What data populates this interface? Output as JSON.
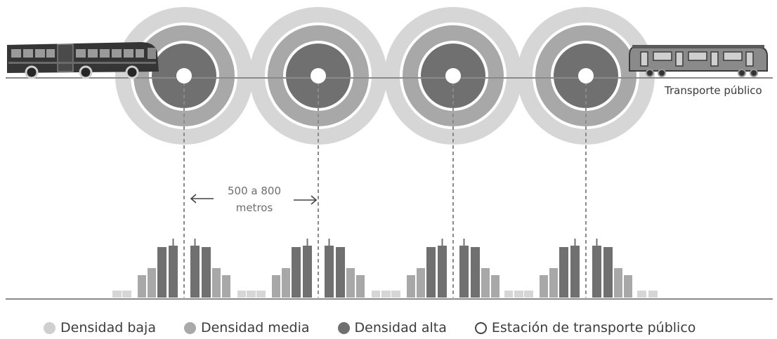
{
  "labels": {
    "transport": "Transporte público",
    "distance_line1": "500 a 800",
    "distance_line2": "metros"
  },
  "legend": [
    {
      "label": "Densidad baja",
      "color": "#cfcfcf",
      "kind": "filled"
    },
    {
      "label": "Densidad media",
      "color": "#a9a9a9",
      "kind": "filled"
    },
    {
      "label": "Densidad alta",
      "color": "#6f6f6f",
      "kind": "filled"
    },
    {
      "label": "Estación de transporte público",
      "color": "#ffffff",
      "kind": "outline"
    }
  ],
  "colors": {
    "low": "#d6d6d6",
    "medium": "#a8a8a8",
    "high": "#707070",
    "line": "#8a8a8a",
    "vehicle": "#3a3a3a"
  },
  "icons": {
    "left_vehicle": "articulated-bus-icon",
    "right_vehicle": "train-car-icon",
    "left_arrow": "arrow-left-icon",
    "right_arrow": "arrow-right-icon"
  }
}
